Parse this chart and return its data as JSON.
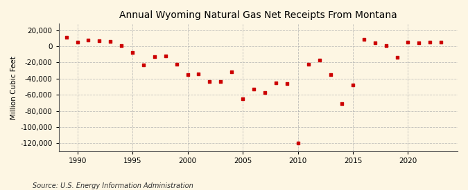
{
  "title": "Annual Wyoming Natural Gas Net Receipts From Montana",
  "ylabel": "Million Cubic Feet",
  "source": "Source: U.S. Energy Information Administration",
  "background_color": "#fdf6e3",
  "plot_bg_color": "#fdf6e3",
  "marker_color": "#cc0000",
  "grid_color": "#b0b0b0",
  "years": [
    1989,
    1990,
    1991,
    1992,
    1993,
    1994,
    1995,
    1996,
    1997,
    1998,
    1999,
    2000,
    2001,
    2002,
    2003,
    2004,
    2005,
    2006,
    2007,
    2008,
    2009,
    2010,
    2011,
    2012,
    2013,
    2014,
    2015,
    2016,
    2017,
    2018,
    2019,
    2020,
    2021,
    2022,
    2023
  ],
  "values": [
    11000,
    5000,
    8000,
    7000,
    6000,
    1000,
    -8000,
    -23000,
    -13000,
    -12000,
    -22000,
    -35000,
    -34000,
    -44000,
    -44000,
    -32000,
    -65000,
    -53000,
    -57000,
    -45000,
    -46000,
    -120000,
    -22000,
    -17000,
    -35000,
    -71000,
    -48000,
    9000,
    4000,
    1000,
    -14000,
    5000,
    4000,
    5000,
    5000
  ],
  "ylim": [
    -130000,
    28000
  ],
  "yticks": [
    20000,
    0,
    -20000,
    -40000,
    -60000,
    -80000,
    -100000,
    -120000
  ],
  "xticks": [
    1990,
    1995,
    2000,
    2005,
    2010,
    2015,
    2020
  ],
  "xlim": [
    1988.3,
    2024.5
  ],
  "title_fontsize": 10,
  "tick_fontsize": 7.5,
  "ylabel_fontsize": 7.5,
  "source_fontsize": 7
}
